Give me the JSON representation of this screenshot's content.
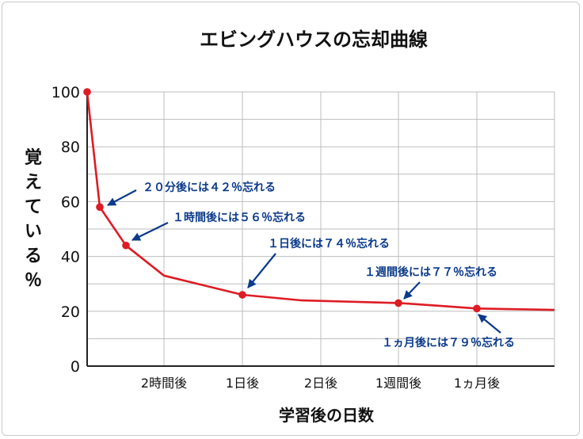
{
  "chart_data": {
    "type": "line",
    "title": "エビングハウスの忘却曲線",
    "xlabel": "学習後の日数",
    "ylabel": "覚えている％",
    "ylim": [
      0,
      100
    ],
    "yticks": [
      "0",
      "20",
      "40",
      "60",
      "80",
      "100"
    ],
    "xticks": [
      "2時間後",
      "1日後",
      "2日後",
      "1週間後",
      "1ヵ月後"
    ],
    "grid": true,
    "line_color": "#dd1c24",
    "annotation_color": "#0b3a8a",
    "series": [
      {
        "values": [
          100,
          58,
          44,
          33,
          26,
          24,
          23,
          22,
          21,
          20.5
        ]
      }
    ],
    "markers": [
      100,
      58,
      44,
      26,
      23,
      21
    ],
    "annotations": [
      "２０分後には４２％忘れる",
      "１時間後には５６％忘れる",
      "１日後には７４％忘れる",
      "１週間後には７７％忘れる",
      "１ヵ月後には７９％忘れる"
    ]
  }
}
